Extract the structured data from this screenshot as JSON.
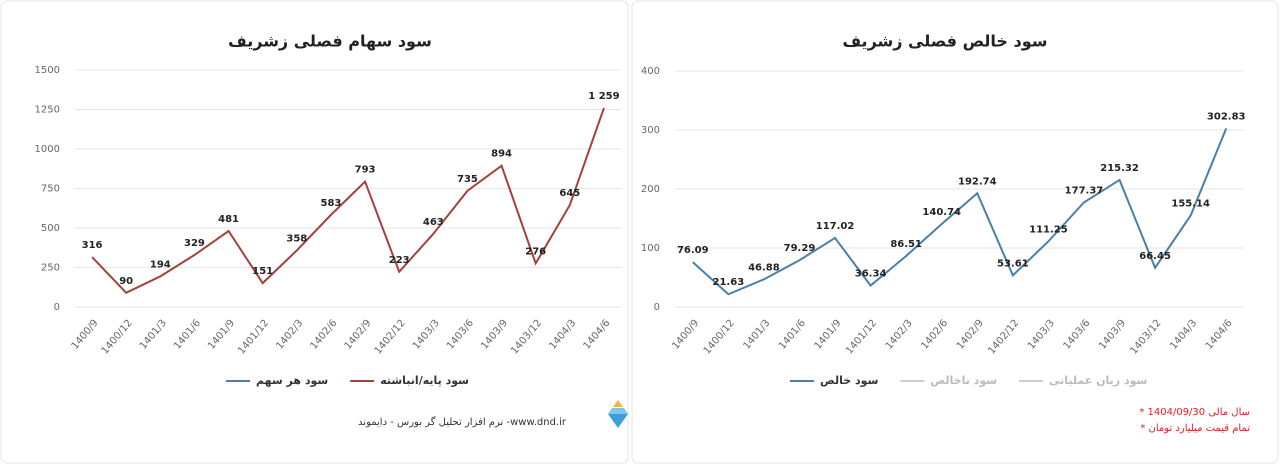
{
  "chart_data": [
    {
      "type": "line",
      "title": "سود سهام فصلی زشریف",
      "categories": [
        "1400/9",
        "1400/12",
        "1401/3",
        "1401/6",
        "1401/9",
        "1401/12",
        "1402/3",
        "1402/6",
        "1402/9",
        "1402/12",
        "1403/3",
        "1403/6",
        "1403/9",
        "1403/12",
        "1404/3",
        "1404/6"
      ],
      "series": [
        {
          "name": "سود هر سهم",
          "color": "#4a7fa8",
          "values": [
            null,
            null,
            null,
            null,
            null,
            null,
            null,
            null,
            null,
            null,
            null,
            null,
            null,
            null,
            null,
            null
          ]
        },
        {
          "name": "سود پایه/انباشته",
          "color": "#a3413d",
          "values": [
            316,
            90,
            194,
            329,
            481,
            151,
            358,
            583,
            793,
            223,
            463,
            735,
            894,
            276,
            645,
            1259
          ],
          "value_labels": [
            "316",
            "90",
            "194",
            "329",
            "481",
            "151",
            "358",
            "583",
            "793",
            "223",
            "463",
            "735",
            "894",
            "276",
            "645",
            "1 259"
          ]
        }
      ],
      "ylim": [
        0,
        1500
      ],
      "yticks": [
        0,
        250,
        500,
        750,
        1000,
        1250,
        1500
      ],
      "grid": true
    },
    {
      "type": "line",
      "title": "سود خالص فصلی زشریف",
      "categories": [
        "1400/9",
        "1400/12",
        "1401/3",
        "1401/6",
        "1401/9",
        "1401/12",
        "1402/3",
        "1402/6",
        "1402/9",
        "1402/12",
        "1403/3",
        "1403/6",
        "1403/9",
        "1403/12",
        "1404/3",
        "1404/6"
      ],
      "series": [
        {
          "name": "سود خالص",
          "color": "#4a7fa8",
          "values": [
            76.09,
            21.63,
            46.88,
            79.29,
            117.02,
            36.34,
            86.51,
            140.74,
            192.74,
            53.61,
            111.25,
            177.37,
            215.32,
            66.45,
            155.14,
            302.83
          ]
        },
        {
          "name": "سود ناخالص",
          "color": "#cfcfcf",
          "values": [
            null,
            null,
            null,
            null,
            null,
            null,
            null,
            null,
            null,
            null,
            null,
            null,
            null,
            null,
            null,
            null
          ]
        },
        {
          "name": "سود زیان عملیاتی",
          "color": "#cfcfcf",
          "values": [
            null,
            null,
            null,
            null,
            null,
            null,
            null,
            null,
            null,
            null,
            null,
            null,
            null,
            null,
            null,
            null
          ]
        }
      ],
      "ylim": [
        0,
        400
      ],
      "yticks": [
        0,
        100,
        200,
        300,
        400
      ],
      "grid": true
    }
  ],
  "footer": "نرم افزار تحلیل گر بورس - دایموند -www.dnd.ir",
  "notes": [
    "* سال مالی 1404/09/30",
    "* تمام قیمت میلیارد تومان"
  ]
}
